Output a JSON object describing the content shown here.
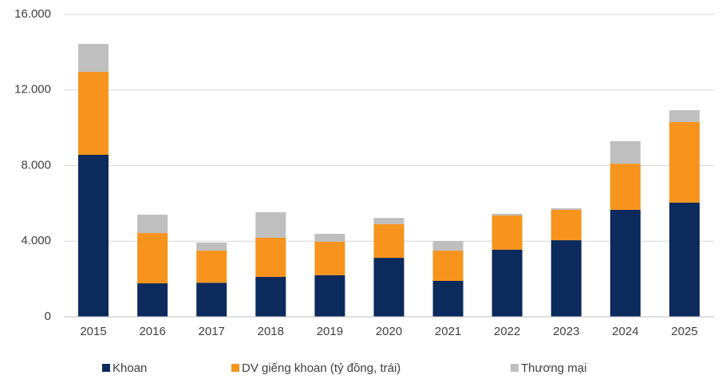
{
  "chart_data": {
    "type": "stacked_bar",
    "categories": [
      "2015",
      "2016",
      "2017",
      "2018",
      "2019",
      "2020",
      "2021",
      "2022",
      "2023",
      "2024",
      "2025"
    ],
    "series": [
      {
        "name": "Khoan",
        "color": "#0c2a5b",
        "values": [
          8570,
          1770,
          1800,
          2110,
          2200,
          3120,
          1900,
          3550,
          4050,
          5660,
          6040
        ]
      },
      {
        "name": "DV giếng khoan (tỷ đồng, trái)",
        "color": "#f7941d",
        "values": [
          4390,
          2660,
          1700,
          2070,
          1770,
          1780,
          1600,
          1810,
          1610,
          2440,
          4260
        ]
      },
      {
        "name": "Thương mại",
        "color": "#bfbfbf",
        "values": [
          1480,
          970,
          430,
          1350,
          420,
          330,
          510,
          90,
          80,
          1190,
          630
        ]
      }
    ],
    "ylim": [
      0,
      16000
    ],
    "yticks": [
      0,
      {
        "value": 4000,
        "label": "4.000"
      },
      {
        "value": 8000,
        "label": "8.000"
      },
      {
        "value": 12000,
        "label": "12.000"
      },
      {
        "value": 16000,
        "label": "16.000"
      }
    ],
    "grid": true,
    "legend": "bottom"
  }
}
